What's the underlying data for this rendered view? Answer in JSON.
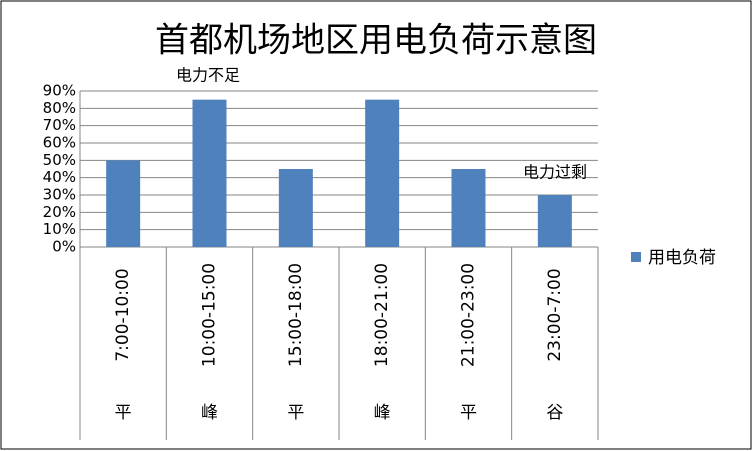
{
  "chart_data": {
    "type": "bar",
    "title": "首都机场地区用电负荷示意图",
    "categories": [
      "7:00-10:00",
      "10:00-15:00",
      "15:00-18:00",
      "18:00-21:00",
      "21:00-23:00",
      "23:00-7:00"
    ],
    "category_groups": [
      "平",
      "峰",
      "平",
      "峰",
      "平",
      "谷"
    ],
    "series": [
      {
        "name": "用电负荷",
        "color": "#4f81bd",
        "values": [
          50,
          85,
          45,
          85,
          45,
          30
        ]
      }
    ],
    "ylim": [
      0,
      90
    ],
    "yticks": [
      {
        "value": 0,
        "label": "0%"
      },
      {
        "value": 10,
        "label": "10%"
      },
      {
        "value": 20,
        "label": "20%"
      },
      {
        "value": 30,
        "label": "30%"
      },
      {
        "value": 40,
        "label": "40%"
      },
      {
        "value": 50,
        "label": "50%"
      },
      {
        "value": 60,
        "label": "60%"
      },
      {
        "value": 70,
        "label": "70%"
      },
      {
        "value": 80,
        "label": "80%"
      },
      {
        "value": 90,
        "label": "90%"
      }
    ],
    "grid": true,
    "legend": "right",
    "annotations": [
      "电力不足",
      "电力过剩"
    ]
  }
}
